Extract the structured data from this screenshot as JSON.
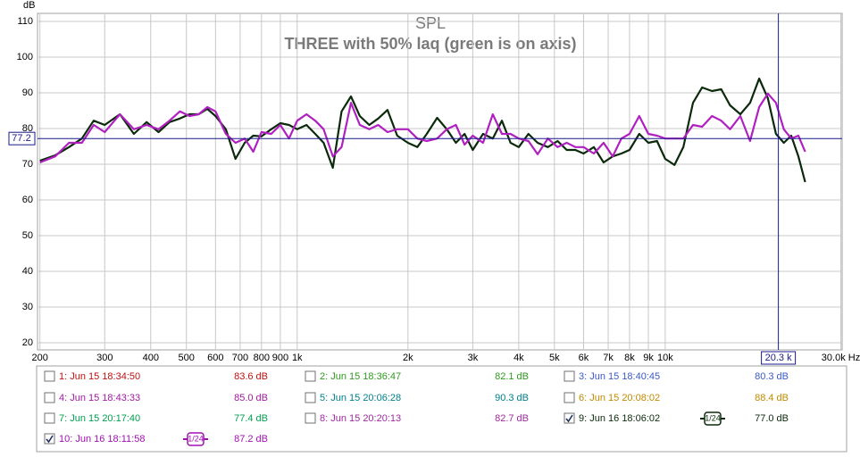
{
  "chart_data": {
    "type": "line",
    "y_label": "dB",
    "title": "SPL",
    "subtitle": "THREE with 50% laq (green is on axis)",
    "log_x": true,
    "grid": true,
    "xlim": [
      197,
      30250
    ],
    "ylim": [
      18,
      112.25
    ],
    "yticks": [
      20,
      30,
      40,
      50,
      60,
      70,
      80,
      90,
      100,
      110
    ],
    "xticks": [
      {
        "value": 200,
        "label": "200"
      },
      {
        "value": 300,
        "label": "300"
      },
      {
        "value": 400,
        "label": "400"
      },
      {
        "value": 500,
        "label": "500"
      },
      {
        "value": 600,
        "label": "600"
      },
      {
        "value": 700,
        "label": "700"
      },
      {
        "value": 800,
        "label": "800"
      },
      {
        "value": 900,
        "label": "900"
      },
      {
        "value": 1000,
        "label": "1k"
      },
      {
        "value": 2000,
        "label": "2k"
      },
      {
        "value": 3000,
        "label": "3k"
      },
      {
        "value": 4000,
        "label": "4k"
      },
      {
        "value": 5000,
        "label": "5k"
      },
      {
        "value": 6000,
        "label": "6k"
      },
      {
        "value": 7000,
        "label": "7k"
      },
      {
        "value": 8000,
        "label": "8k"
      },
      {
        "value": 9000,
        "label": "9k"
      },
      {
        "value": 10000,
        "label": "10k"
      },
      {
        "value": 30000,
        "label": "30.0k Hz"
      }
    ],
    "cursor": {
      "y": 77.2,
      "x": {
        "value": 20300,
        "label": "20.3 k"
      },
      "color": "#1a1a8c"
    },
    "x": [
      200,
      220,
      240,
      260,
      280,
      300,
      330,
      360,
      390,
      420,
      450,
      480,
      510,
      540,
      570,
      600,
      640,
      680,
      720,
      760,
      800,
      850,
      900,
      950,
      1000,
      1060,
      1120,
      1180,
      1250,
      1320,
      1400,
      1480,
      1570,
      1660,
      1760,
      1870,
      2000,
      2120,
      2250,
      2400,
      2550,
      2700,
      2850,
      3000,
      3200,
      3400,
      3600,
      3800,
      4000,
      4250,
      4500,
      4800,
      5100,
      5400,
      5700,
      6000,
      6400,
      6800,
      7200,
      7600,
      8000,
      8500,
      9000,
      9500,
      10000,
      10600,
      11200,
      11900,
      12600,
      13400,
      14200,
      15000,
      16000,
      17000,
      18000,
      19000,
      20000,
      21000,
      22000,
      23000,
      24000
    ],
    "series": [
      {
        "color": "#0b2a0b",
        "values": [
          71,
          72.5,
          74.8,
          77.2,
          82.2,
          81,
          84,
          78.5,
          81.8,
          79,
          81.8,
          82.8,
          84,
          84,
          85.5,
          83.5,
          79.8,
          71.5,
          76,
          78,
          77.8,
          79.8,
          81.5,
          81,
          79.8,
          81,
          78.5,
          76,
          69,
          84.8,
          89,
          83.5,
          81,
          82.8,
          85.2,
          78,
          76,
          74.8,
          78.5,
          83,
          79.8,
          76,
          78.5,
          74,
          78.5,
          77.2,
          82.2,
          76,
          74.8,
          78.5,
          76,
          74.8,
          76.5,
          74,
          74,
          73,
          74.8,
          70.5,
          72.2,
          73,
          74,
          78.5,
          76,
          76.5,
          71.5,
          69.8,
          74.8,
          87.2,
          91.5,
          90.5,
          91,
          86.5,
          84,
          87.2,
          94,
          88.5,
          78.5,
          76,
          78,
          72.2,
          65
        ]
      },
      {
        "color": "#b020c0",
        "values": [
          70.5,
          72.2,
          76,
          76,
          81,
          79,
          84,
          79.8,
          81,
          79.8,
          82.2,
          84.8,
          83.5,
          84,
          86,
          84.8,
          78.5,
          76,
          77.2,
          73.5,
          79,
          78.5,
          81,
          77.2,
          82.2,
          84,
          82.2,
          79.8,
          72.2,
          74.8,
          87.2,
          81,
          79.8,
          81,
          79,
          79.8,
          79.8,
          77.2,
          76.5,
          77.2,
          79.8,
          81,
          75.5,
          78,
          76,
          84,
          78.5,
          78.5,
          77.2,
          76.5,
          72.8,
          77.2,
          74.8,
          76,
          74.8,
          74.8,
          73,
          76,
          72.2,
          77.2,
          78.5,
          83.5,
          78.5,
          78,
          77.2,
          77.2,
          77.2,
          81,
          80.5,
          83.5,
          82.2,
          79.8,
          83.5,
          76.5,
          86,
          89.8,
          87.2,
          79.8,
          77.2,
          78,
          73.5
        ]
      }
    ],
    "measurements": [
      {
        "name": "1: Jun 15 18:34:50",
        "level": "83.6 dB",
        "color": "#c01010",
        "checked": false
      },
      {
        "name": "2: Jun 15 18:36:47",
        "level": "82.1 dB",
        "color": "#2e9a1e",
        "checked": false
      },
      {
        "name": "3: Jun 15 18:40:45",
        "level": "80.3 dB",
        "color": "#3a5ac8",
        "checked": false
      },
      {
        "name": "4: Jun 15 18:43:33",
        "level": "85.0 dB",
        "color": "#a01aa0",
        "checked": false
      },
      {
        "name": "5: Jun 15 20:06:28",
        "level": "90.3 dB",
        "color": "#00808a",
        "checked": false
      },
      {
        "name": "6: Jun 15 20:08:02",
        "level": "88.4 dB",
        "color": "#c08a00",
        "checked": false
      },
      {
        "name": "7: Jun 15 20:17:40",
        "level": "77.4 dB",
        "color": "#00a050",
        "checked": false
      },
      {
        "name": "8: Jun 15 20:20:13",
        "level": "82.7 dB",
        "color": "#a028a0",
        "checked": false
      },
      {
        "name": "9: Jun 16 18:06:02",
        "level": "77.0 dB",
        "color": "#0b2a0b",
        "checked": true,
        "smoothing": "1/24"
      },
      {
        "name": "10: Jun 16 18:11:58",
        "level": "87.2 dB",
        "color": "#a010b0",
        "checked": true,
        "smoothing": "1/24"
      }
    ]
  }
}
